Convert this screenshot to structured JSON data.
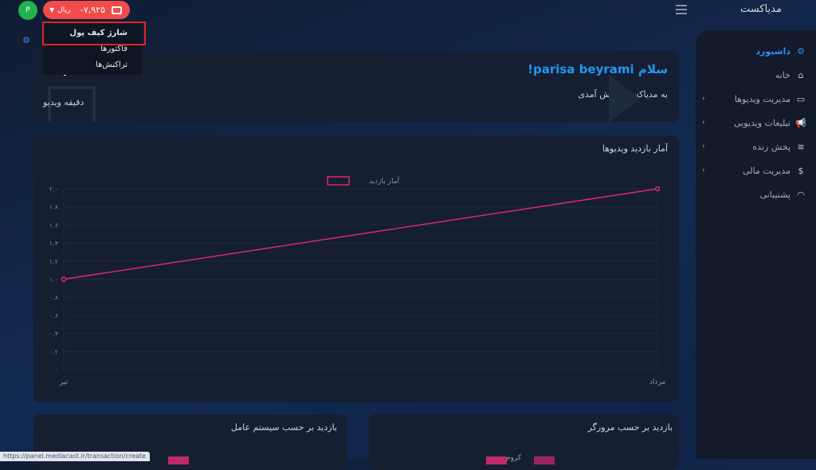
{
  "header": {
    "app_title": "مدیاکست",
    "menu_icon": "hamburger-icon"
  },
  "user": {
    "avatar_letter": "P"
  },
  "wallet": {
    "balance": "-۷,۹۲۵",
    "currency": "ریال",
    "icon": "wallet-icon",
    "color": "#f24b4b"
  },
  "wallet_menu": {
    "items": [
      {
        "label": "شارژ کیف پول"
      },
      {
        "label": "فاکتورها"
      },
      {
        "label": "تراکنش‌ها"
      }
    ]
  },
  "sidebar": {
    "section": "داشبورد",
    "items": [
      {
        "label": "خانه",
        "icon": "home-icon"
      },
      {
        "label": "مدیریت ویدیوها",
        "icon": "video-icon",
        "has_children": true
      },
      {
        "label": "تبلیغات ویدیویی",
        "icon": "megaphone-icon",
        "has_children": true
      },
      {
        "label": "پخش زنده",
        "icon": "wifi-icon",
        "has_children": true
      },
      {
        "label": "مدیریت مالی",
        "icon": "dollar-icon",
        "has_children": true
      },
      {
        "label": "پشتیبانی",
        "icon": "headphones-icon"
      }
    ]
  },
  "welcome": {
    "greeting": "سلام parisa beyrami!",
    "subtitle": "به مدیاکست خوش آمدی",
    "stat_value": "۳",
    "stat_label": "دقیقه ویدیو"
  },
  "chart_card": {
    "title": "آمار بازدید ویدیوها"
  },
  "chart_data": {
    "type": "line",
    "categories": [
      "تیر",
      "مرداد"
    ],
    "series": [
      {
        "name": "آمار بازدید",
        "values": [
          1.0,
          2.0
        ],
        "color": "#e0266f"
      }
    ],
    "ylim": [
      0,
      2.0
    ],
    "yticks": [
      "۰",
      "۰.۲",
      "۰.۴",
      "۰.۶",
      "۰.۸",
      "۱.۰",
      "۱.۲",
      "۱.۴",
      "۱.۶",
      "۱.۸",
      "۲.۰"
    ],
    "grid": true,
    "legend": "top-center"
  },
  "browser_card": {
    "title": "بازدید بر حسب مرورگر",
    "legend": [
      "کروم"
    ]
  },
  "os_card": {
    "title": "بازدید بر حسب سیستم عامل"
  },
  "status_url": "https://panel.mediacast.ir/transaction/create"
}
